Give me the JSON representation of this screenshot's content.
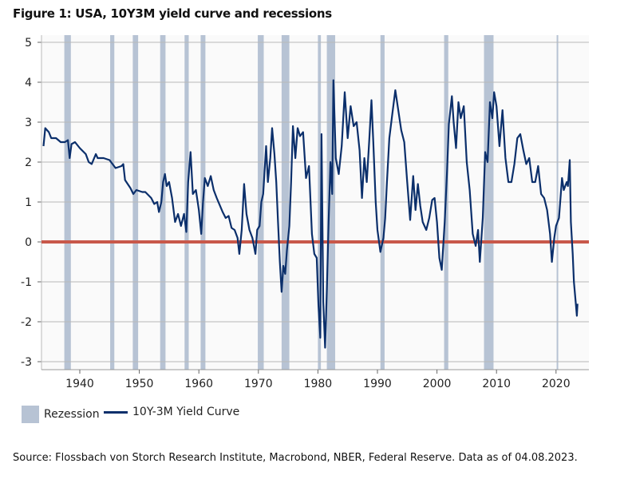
{
  "title": "Figure 1: USA, 10Y3M yield curve and recessions",
  "legend": {
    "recession_label": "Rezession",
    "line_label": "10Y-3M Yield Curve"
  },
  "source": "Source: Flossbach von Storch Research Institute, Macrobond, NBER, Federal Reserve. Data as of 04.08.2023.",
  "chart_data": {
    "type": "line",
    "title": "Figure 1: USA, 10Y3M yield curve and recessions",
    "xlabel": "",
    "ylabel": "",
    "xlim": [
      1933.6,
      2025.5
    ],
    "ylim": [
      -3.2,
      5.2
    ],
    "xticks": [
      1940,
      1950,
      1960,
      1970,
      1980,
      1990,
      2000,
      2010,
      2020
    ],
    "yticks": [
      5,
      4,
      3,
      2,
      1,
      0,
      -1,
      -2,
      -3
    ],
    "grid": "horizontal",
    "legend_position": "bottom-left",
    "colors": {
      "line": "#0b2f6b",
      "recession": "#b7c3d4",
      "zero_line": "#c8584a",
      "grid": "#b8b8b8",
      "plot_bg": "#fafafa"
    },
    "zero_line": 0,
    "recessions": [
      [
        1937.4,
        1938.5
      ],
      [
        1945.1,
        1945.8
      ],
      [
        1948.9,
        1949.8
      ],
      [
        1953.5,
        1954.4
      ],
      [
        1957.6,
        1958.3
      ],
      [
        1960.3,
        1961.1
      ],
      [
        1969.9,
        1970.9
      ],
      [
        1973.9,
        1975.2
      ],
      [
        1980.0,
        1980.5
      ],
      [
        1981.5,
        1982.9
      ],
      [
        1990.5,
        1991.2
      ],
      [
        2001.2,
        2001.9
      ],
      [
        2007.9,
        2009.5
      ],
      [
        2020.1,
        2020.3
      ]
    ],
    "series": [
      {
        "name": "10Y-3M Yield Curve",
        "x": [
          1933.9,
          1934.2,
          1934.8,
          1935.2,
          1936,
          1936.8,
          1937.5,
          1938,
          1938.3,
          1938.6,
          1939.2,
          1940,
          1941,
          1941.5,
          1942,
          1942.7,
          1943,
          1944,
          1945,
          1946,
          1947,
          1947.3,
          1947.6,
          1948.5,
          1949,
          1949.5,
          1950.5,
          1951,
          1952,
          1952.5,
          1953,
          1953.3,
          1953.7,
          1954,
          1954.3,
          1954.6,
          1955,
          1955.5,
          1956,
          1956.5,
          1957,
          1957.5,
          1957.9,
          1958.2,
          1958.6,
          1959,
          1959.5,
          1960,
          1960.4,
          1960.7,
          1961,
          1961.5,
          1962,
          1962.5,
          1963,
          1964,
          1964.5,
          1965,
          1965.5,
          1966,
          1966.5,
          1966.8,
          1967.2,
          1967.6,
          1968,
          1968.5,
          1969,
          1969.5,
          1969.8,
          1970.2,
          1970.5,
          1970.8,
          1971.3,
          1971.6,
          1972,
          1972.3,
          1972.7,
          1973,
          1973.3,
          1973.6,
          1973.9,
          1974.2,
          1974.5,
          1974.8,
          1975.2,
          1975.5,
          1975.8,
          1976.2,
          1976.6,
          1977,
          1977.5,
          1978,
          1978.5,
          1979,
          1979.4,
          1979.8,
          1980.1,
          1980.4,
          1980.6,
          1980.9,
          1981.2,
          1981.5,
          1981.8,
          1982.1,
          1982.4,
          1982.6,
          1983,
          1983.5,
          1984,
          1984.5,
          1985,
          1985.5,
          1986,
          1986.5,
          1987,
          1987.4,
          1987.8,
          1988.2,
          1988.6,
          1989,
          1989.3,
          1989.7,
          1990,
          1990.5,
          1991,
          1991.3,
          1991.6,
          1992,
          1992.5,
          1993,
          1993.5,
          1994,
          1994.5,
          1995,
          1995.5,
          1996,
          1996.4,
          1996.8,
          1997.2,
          1997.6,
          1998.2,
          1998.7,
          1999.2,
          1999.6,
          2000,
          2000.4,
          2000.8,
          2001.3,
          2001.7,
          2002,
          2002.5,
          2002.8,
          2003.2,
          2003.6,
          2004,
          2004.5,
          2005,
          2005.5,
          2006,
          2006.5,
          2006.9,
          2007.2,
          2007.7,
          2008.1,
          2008.5,
          2008.9,
          2009.3,
          2009.6,
          2010,
          2010.5,
          2011,
          2011.5,
          2012,
          2012.5,
          2013,
          2013.5,
          2014,
          2014.5,
          2015,
          2015.5,
          2016,
          2016.5,
          2017,
          2017.5,
          2018,
          2018.5,
          2019,
          2019.3,
          2019.7,
          2020,
          2020.5,
          2021,
          2021.3,
          2021.8,
          2022,
          2022.3,
          2022.5,
          2022.8,
          2023,
          2023.3,
          2023.5,
          2023.6
        ],
        "y": [
          2.4,
          2.85,
          2.75,
          2.6,
          2.6,
          2.5,
          2.5,
          2.55,
          2.1,
          2.45,
          2.5,
          2.35,
          2.2,
          2.0,
          1.95,
          2.2,
          2.1,
          2.1,
          2.05,
          1.85,
          1.9,
          1.95,
          1.55,
          1.35,
          1.2,
          1.3,
          1.25,
          1.25,
          1.1,
          0.95,
          1.0,
          0.75,
          1.0,
          1.5,
          1.7,
          1.4,
          1.5,
          1.1,
          0.5,
          0.7,
          0.4,
          0.7,
          0.25,
          1.5,
          2.25,
          1.2,
          1.3,
          0.8,
          0.2,
          1.0,
          1.6,
          1.4,
          1.65,
          1.3,
          1.1,
          0.75,
          0.6,
          0.65,
          0.35,
          0.3,
          0.1,
          -0.3,
          0.3,
          1.45,
          0.7,
          0.3,
          0.1,
          -0.3,
          0.3,
          0.4,
          1.0,
          1.2,
          2.4,
          1.5,
          2.1,
          2.85,
          2.2,
          1.5,
          0.5,
          -0.5,
          -1.25,
          -0.6,
          -0.8,
          -0.2,
          0.4,
          1.5,
          2.9,
          2.1,
          2.85,
          2.65,
          2.75,
          1.6,
          1.9,
          0.2,
          -0.3,
          -0.4,
          -1.6,
          -2.4,
          2.7,
          -1.5,
          -2.65,
          -1.2,
          0.5,
          2.0,
          1.2,
          4.05,
          2.1,
          1.7,
          2.4,
          3.75,
          2.6,
          3.4,
          2.9,
          3.0,
          2.3,
          1.1,
          2.1,
          1.5,
          2.5,
          3.55,
          2.5,
          1.0,
          0.3,
          -0.25,
          0.1,
          0.6,
          1.5,
          2.6,
          3.2,
          3.8,
          3.3,
          2.8,
          2.5,
          1.5,
          0.55,
          1.65,
          0.8,
          1.45,
          0.9,
          0.5,
          0.3,
          0.6,
          1.05,
          1.1,
          0.5,
          -0.4,
          -0.7,
          0.5,
          1.8,
          2.95,
          3.65,
          3.0,
          2.35,
          3.5,
          3.1,
          3.4,
          2.0,
          1.3,
          0.2,
          -0.1,
          0.3,
          -0.5,
          0.6,
          2.25,
          2.0,
          3.5,
          3.1,
          3.75,
          3.4,
          2.4,
          3.3,
          2.1,
          1.5,
          1.5,
          1.95,
          2.6,
          2.7,
          2.3,
          1.95,
          2.1,
          1.5,
          1.5,
          1.9,
          1.2,
          1.1,
          0.8,
          0.2,
          -0.5,
          0.1,
          0.4,
          0.6,
          1.6,
          1.3,
          1.5,
          1.4,
          2.05,
          0.5,
          -0.3,
          -1.0,
          -1.5,
          -1.85,
          -1.55
        ]
      }
    ]
  }
}
